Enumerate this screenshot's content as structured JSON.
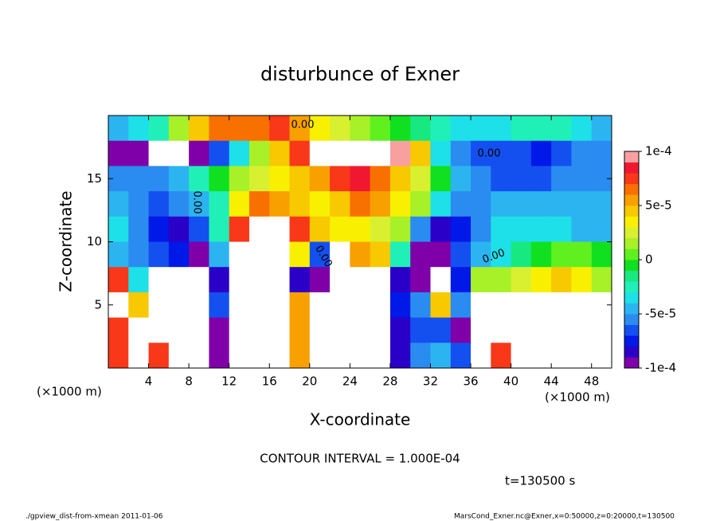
{
  "chart_data": {
    "type": "contour",
    "title": "disturbunce of Exner",
    "x_label": "X-coordinate",
    "y_label": "Z-coordinate",
    "x_unit": "(×1000 m)",
    "y_unit": "(×1000 m)",
    "xlim": [
      0,
      50
    ],
    "ylim": [
      0,
      20
    ],
    "xticks": [
      4,
      8,
      12,
      16,
      20,
      24,
      28,
      32,
      36,
      40,
      44,
      48
    ],
    "yticks": [
      5,
      10,
      15
    ],
    "x": [
      1,
      3,
      5,
      7,
      9,
      11,
      13,
      15,
      17,
      19,
      21,
      23,
      25,
      27,
      29,
      31,
      33,
      35,
      37,
      39,
      41,
      43,
      45,
      47,
      49
    ],
    "y": [
      19,
      17,
      15,
      13,
      11,
      9,
      7,
      5,
      3,
      1
    ],
    "z": [
      [
        -4e-05,
        -3e-05,
        -2e-05,
        2e-05,
        5e-05,
        7e-05,
        7e-05,
        7e-05,
        8e-05,
        6e-05,
        4e-05,
        3e-05,
        2e-05,
        1e-05,
        0,
        -1e-05,
        -2e-05,
        -3e-05,
        -3e-05,
        -3e-05,
        -2e-05,
        -2e-05,
        -2e-05,
        -3e-05,
        -4e-05
      ],
      [
        -9e-05,
        -0.0001,
        -0.00012,
        -0.00012,
        -9e-05,
        -6e-05,
        -3e-05,
        2e-05,
        5e-05,
        8e-05,
        0.00012,
        0.00012,
        0.00012,
        0.00012,
        0.0001,
        5e-05,
        -3e-05,
        -5e-05,
        -6e-05,
        -6e-05,
        -6e-05,
        -7e-05,
        -6e-05,
        -5e-05,
        -5e-05
      ],
      [
        -5e-05,
        -5e-05,
        -5e-05,
        -4e-05,
        -2e-05,
        0,
        2e-05,
        3e-05,
        4e-05,
        5e-05,
        6e-05,
        8e-05,
        9e-05,
        7e-05,
        5e-05,
        3e-05,
        0,
        -4e-05,
        -5e-05,
        -6e-05,
        -6e-05,
        -6e-05,
        -5e-05,
        -5e-05,
        -5e-05
      ],
      [
        -4e-05,
        -5e-05,
        -6e-05,
        -5e-05,
        -4e-05,
        -2e-05,
        4e-05,
        7e-05,
        6e-05,
        5e-05,
        4e-05,
        5e-05,
        7e-05,
        6e-05,
        4e-05,
        2e-05,
        -3e-05,
        -5e-05,
        -5e-05,
        -4e-05,
        -4e-05,
        -4e-05,
        -4e-05,
        -4e-05,
        -4e-05
      ],
      [
        -3e-05,
        -5e-05,
        -7e-05,
        -8e-05,
        -6e-05,
        -2e-05,
        8e-05,
        0.00012,
        0.00012,
        8e-05,
        5e-05,
        4e-05,
        4e-05,
        3e-05,
        2e-05,
        -5e-05,
        -8e-05,
        -7e-05,
        -5e-05,
        -3e-05,
        -3e-05,
        -3e-05,
        -3e-05,
        -4e-05,
        -4e-05
      ],
      [
        -4e-05,
        -5e-05,
        -6e-05,
        -7e-05,
        -9e-05,
        -4e-05,
        0.00012,
        0.00012,
        0.00012,
        4e-05,
        -6e-05,
        0.00012,
        6e-05,
        5e-05,
        -2e-05,
        -9e-05,
        -0.0001,
        -6e-05,
        -4e-05,
        -3e-05,
        -1e-05,
        0,
        1e-05,
        1e-05,
        0
      ],
      [
        8e-05,
        -3e-05,
        -0.00012,
        -0.00012,
        -0.00012,
        -8e-05,
        0.00012,
        0.00012,
        0.00012,
        -8e-05,
        -0.0001,
        0.00012,
        0.00012,
        0.00012,
        -8e-05,
        -9e-05,
        -0.00012,
        -7e-05,
        2e-05,
        2e-05,
        3e-05,
        4e-05,
        5e-05,
        4e-05,
        2e-05
      ],
      [
        0.00012,
        5e-05,
        -0.00012,
        -0.00012,
        -0.00012,
        -6e-05,
        0.00012,
        0.00012,
        0.00012,
        6e-05,
        -0.00012,
        0.00012,
        0.00012,
        0.00012,
        -7e-05,
        -5e-05,
        5e-05,
        -5e-05,
        0.00012,
        0.00012,
        0.00012,
        0.00012,
        0.00012,
        0.00012,
        0.00012
      ],
      [
        8e-05,
        0.00012,
        -0.00012,
        -0.00012,
        -0.00012,
        -0.0001,
        0.00012,
        0.00012,
        0.00012,
        6e-05,
        -0.00012,
        -0.00012,
        -0.00012,
        -0.00012,
        -8e-05,
        -6e-05,
        -6e-05,
        -9e-05,
        0.00012,
        0.00012,
        0.00012,
        0.00012,
        0.00012,
        0.00012,
        0.00012
      ],
      [
        8e-05,
        0.00012,
        8e-05,
        -0.00012,
        -0.00012,
        -0.0001,
        0.00012,
        0.00012,
        0.00012,
        6e-05,
        -0.00012,
        -0.00012,
        -0.00012,
        -0.00012,
        -8e-05,
        -5e-05,
        -4e-05,
        -6e-05,
        0.00012,
        8e-05,
        0.00012,
        0.00012,
        0.00012,
        0.00012,
        0.00012
      ]
    ],
    "levels": [
      -0.0001,
      -9e-05,
      -8e-05,
      -7e-05,
      -6e-05,
      -5e-05,
      -4e-05,
      -3e-05,
      -2e-05,
      -1e-05,
      0,
      1e-05,
      2e-05,
      3e-05,
      4e-05,
      5e-05,
      6e-05,
      7e-05,
      8e-05,
      9e-05,
      0.0001
    ],
    "colors": [
      "#7f00a8",
      "#2a00c8",
      "#0018e8",
      "#1450f0",
      "#2a8cf0",
      "#2cb4f0",
      "#1ee0e8",
      "#20f0b8",
      "#18e880",
      "#10e020",
      "#60f020",
      "#a8f028",
      "#d8f030",
      "#f8f000",
      "#f8c800",
      "#f8a000",
      "#f87000",
      "#f83818",
      "#f01830",
      "#f8a0a0"
    ],
    "cticks": [
      {
        "value": 0.0001,
        "label": "1e-4"
      },
      {
        "value": 5e-05,
        "label": "5e-5"
      },
      0,
      {
        "value": -5e-05,
        "label": "-5e-5"
      },
      {
        "value": -0.0001,
        "label": "-1e-4"
      }
    ],
    "contour_labels": [
      "0.00",
      "0.00",
      "0.00",
      "0.00",
      "0.00"
    ],
    "contour_interval": "CONTOUR INTERVAL = 1.000E-04",
    "time": "t=130500 s",
    "footer_left": "./gpview_dist-from-xmean  2011-01-06",
    "footer_right": "MarsCond_Exner.nc@Exner,x=0:50000,z=0:20000,t=130500"
  }
}
